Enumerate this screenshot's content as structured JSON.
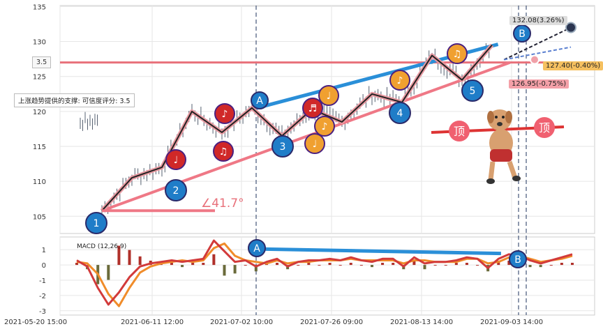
{
  "chart_data": [
    {
      "type": "line",
      "title": "",
      "y_ticks": [
        105,
        110,
        115,
        120,
        125,
        130,
        135
      ],
      "ylim": [
        102.5,
        135
      ],
      "x_tick_labels": [
        "2021-05-20 15:00",
        "2021-06-11 12:00",
        "2021-07-02 10:00",
        "2021-07-26 09:00",
        "2021-08-13 14:00",
        "2021-09-03 14:00"
      ],
      "series": [
        {
          "name": "wave-path",
          "points": [
            [
              1,
              105.8
            ],
            [
              2,
              110.5
            ],
            [
              3,
              112.0
            ],
            [
              4,
              120.0
            ],
            [
              5,
              117.0
            ],
            [
              6,
              120.5
            ],
            [
              7,
              116.5
            ],
            [
              8,
              120.3
            ],
            [
              9,
              118.5
            ],
            [
              10,
              122.5
            ],
            [
              11,
              121.3
            ],
            [
              12,
              128.0
            ],
            [
              13,
              124.5
            ],
            [
              14,
              129.5
            ]
          ]
        },
        {
          "name": "upper-trend",
          "points": [
            [
              6,
              120.3
            ],
            [
              14.2,
              129.6
            ]
          ]
        },
        {
          "name": "lower-trend",
          "points": [
            [
              1,
              105.8
            ],
            [
              14.6,
              127.0
            ]
          ]
        },
        {
          "name": "resistance",
          "points": [
            [
              0,
              127.0
            ],
            [
              15,
              127.0
            ]
          ]
        }
      ],
      "wave_labels": [
        "1",
        "2",
        "3",
        "4",
        "5",
        "A",
        "B"
      ],
      "annotations": {
        "angle": "∠41.7°",
        "support_note": "上涨趋势提供的支撑: 可信度评分: 3.5",
        "score_box": "3.5",
        "price_high": "132.08(3.26%)",
        "price_mid": "127.40(-0.40%)",
        "price_low": "126.95(-0.75%)",
        "top_left": "顶",
        "top_right": "顶"
      }
    },
    {
      "type": "line",
      "title": "MACD (12,26,9)",
      "y_ticks": [
        -3,
        -2,
        -1,
        0,
        1
      ],
      "ylim": [
        -3.2,
        1.7
      ],
      "series": [
        {
          "name": "DIF",
          "values": [
            0.3,
            -0.1,
            -1.5,
            -2.6,
            -1.8,
            -0.8,
            -0.1,
            0.1,
            0.2,
            0.3,
            0.2,
            0.3,
            0.4,
            1.6,
            0.9,
            0.2,
            0.3,
            -0.1,
            0.2,
            0.4,
            -0.1,
            0.2,
            0.3,
            0.3,
            0.4,
            0.3,
            0.5,
            0.3,
            0.2,
            0.4,
            0.4,
            -0.1,
            0.5,
            0.1,
            0.2,
            0.2,
            0.3,
            0.5,
            0.4,
            -0.2,
            0.4,
            0.7,
            0.6,
            0.3,
            0.1,
            0.3,
            0.5,
            0.7
          ]
        },
        {
          "name": "DEA",
          "values": [
            0.2,
            0.1,
            -0.6,
            -1.9,
            -2.7,
            -1.5,
            -0.5,
            -0.1,
            0.1,
            0.2,
            0.3,
            0.2,
            0.3,
            1.1,
            1.4,
            0.6,
            0.3,
            0.2,
            0.1,
            0.3,
            0.1,
            0.2,
            0.2,
            0.3,
            0.3,
            0.3,
            0.4,
            0.3,
            0.3,
            0.3,
            0.3,
            0.1,
            0.3,
            0.3,
            0.2,
            0.2,
            0.2,
            0.4,
            0.4,
            0.1,
            0.2,
            0.5,
            0.6,
            0.4,
            0.2,
            0.3,
            0.4,
            0.6
          ]
        },
        {
          "name": "MACD-trend",
          "points": [
            [
              6.1,
              1.05
            ],
            [
              14.3,
              0.75
            ]
          ]
        }
      ],
      "wave_labels": [
        "A",
        "B"
      ]
    }
  ]
}
